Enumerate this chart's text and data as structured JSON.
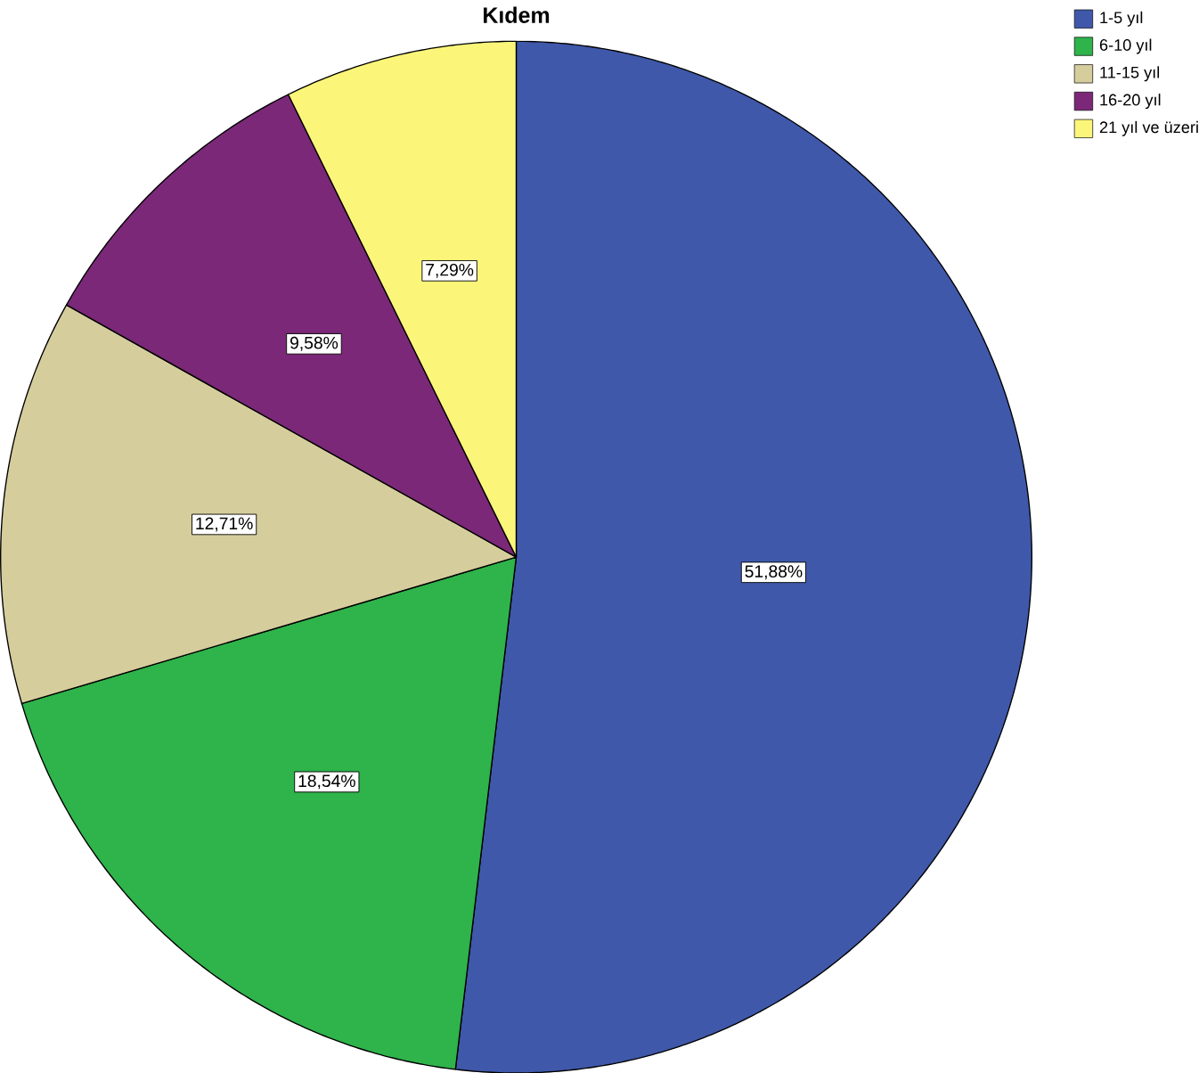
{
  "chart_data": {
    "type": "pie",
    "title": "Kıdem",
    "categories": [
      "1-5 yıl",
      "6-10 yıl",
      "11-15 yıl",
      "16-20 yıl",
      "21 yıl ve üzeri"
    ],
    "values": [
      51.88,
      18.54,
      12.71,
      9.58,
      7.29
    ],
    "value_labels": [
      "51,88%",
      "18,54%",
      "12,71%",
      "9,58%",
      "7,29%"
    ],
    "colors": [
      "#3f58aa",
      "#2fb34b",
      "#d6cd9d",
      "#7b2878",
      "#fbf67a"
    ],
    "legend": "top right"
  }
}
